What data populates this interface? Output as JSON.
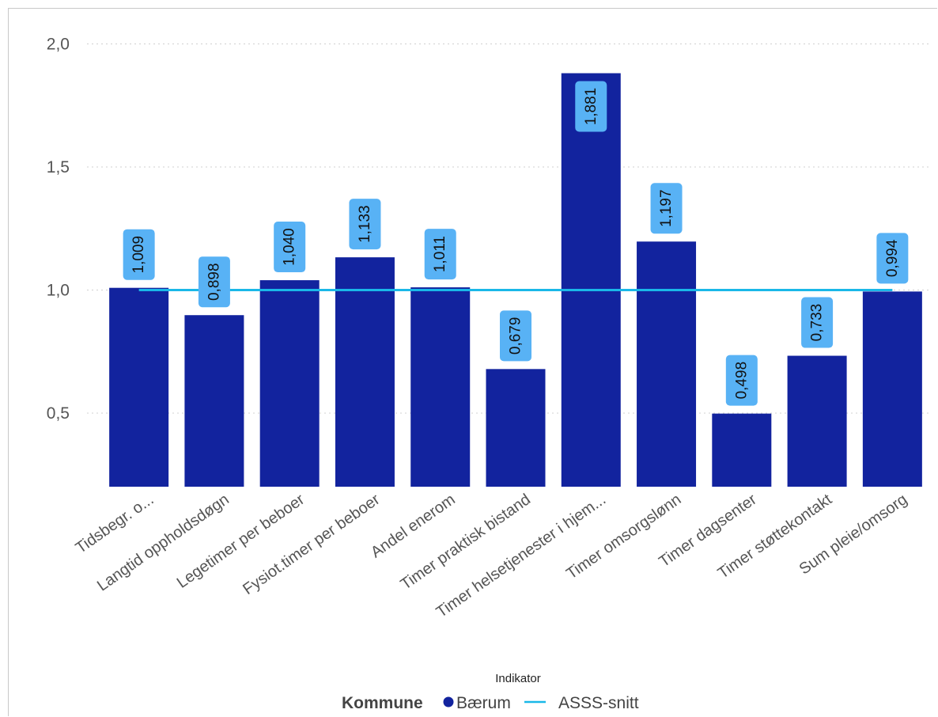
{
  "chart_data": {
    "type": "bar",
    "categories": [
      "Tidsbegr. o...",
      "Langtid oppholdsdøgn",
      "Legetimer per beboer",
      "Fysiot.timer per beboer",
      "Andel enerom",
      "Timer praktisk bistand",
      "Timer helsetjenester i hjem...",
      "Timer omsorgslønn",
      "Timer dagsenter",
      "Timer støttekontakt",
      "Sum pleie/omsorg"
    ],
    "series": [
      {
        "name": "Bærum",
        "type": "bar",
        "values": [
          1.009,
          0.898,
          1.04,
          1.133,
          1.011,
          0.679,
          1.881,
          1.197,
          0.498,
          0.733,
          0.994
        ],
        "labels": [
          "1,009",
          "0,898",
          "1,040",
          "1,133",
          "1,011",
          "0,679",
          "1,881",
          "1,197",
          "0,498",
          "0,733",
          "0,994"
        ],
        "color": "#12239E"
      },
      {
        "name": "ASSS-snitt",
        "type": "line",
        "values": [
          1.0,
          1.0,
          1.0,
          1.0,
          1.0,
          1.0,
          1.0,
          1.0,
          1.0,
          1.0,
          1.0
        ],
        "color": "#1AB8E8"
      }
    ],
    "xlabel": "Indikator",
    "ylabel": "",
    "ylim": [
      0.2,
      2.0
    ],
    "yticks": [
      2.0,
      1.5,
      1.0,
      0.5
    ],
    "ytick_labels": [
      "2,0",
      "1,5",
      "1,0",
      "0,5"
    ],
    "grid": true,
    "legend": {
      "title": "Kommune",
      "position": "bottom",
      "items": [
        {
          "label": "Bærum",
          "marker": "dot"
        },
        {
          "label": "ASSS-snitt",
          "marker": "line"
        }
      ]
    },
    "label_bg_color": "#58B2F5"
  }
}
